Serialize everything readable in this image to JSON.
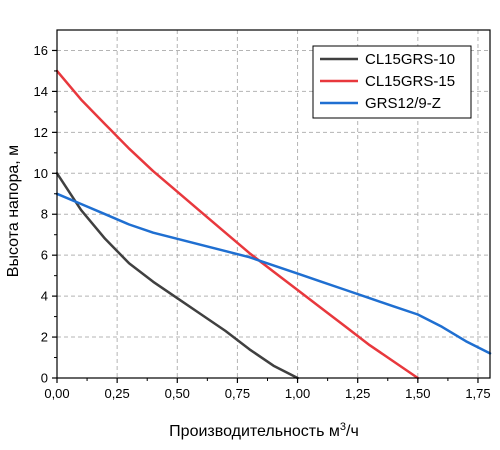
{
  "chart_data": {
    "type": "line",
    "title": "",
    "xlabel": "Производительность м³/ч",
    "xlabel_main": "Производительность м",
    "xlabel_sup": "3",
    "xlabel_tail": "/ч",
    "ylabel": "Высота напора, м",
    "xlim": [
      0,
      1.8
    ],
    "ylim": [
      0,
      17
    ],
    "xticks": [
      0,
      0.25,
      0.5,
      0.75,
      1.0,
      1.25,
      1.5,
      1.75
    ],
    "xtick_labels": [
      "0,00",
      "0,25",
      "0,50",
      "0,75",
      "1,00",
      "1,25",
      "1,50",
      "1,75"
    ],
    "yticks": [
      0,
      2,
      4,
      6,
      8,
      10,
      12,
      14,
      16
    ],
    "ytick_labels": [
      "0",
      "2",
      "4",
      "6",
      "8",
      "10",
      "12",
      "14",
      "16"
    ],
    "grid": true,
    "grid_style": "dashed",
    "legend_position": "top-right",
    "series": [
      {
        "name": "CL15GRS-10",
        "color": "#404040",
        "x": [
          0,
          0.1,
          0.2,
          0.3,
          0.4,
          0.5,
          0.6,
          0.7,
          0.8,
          0.9,
          1.0
        ],
        "y": [
          10.0,
          8.2,
          6.8,
          5.6,
          4.7,
          3.9,
          3.1,
          2.3,
          1.4,
          0.6,
          0.0
        ]
      },
      {
        "name": "CL15GRS-15",
        "color": "#e8383d",
        "x": [
          0,
          0.1,
          0.2,
          0.3,
          0.4,
          0.5,
          0.6,
          0.7,
          0.8,
          0.9,
          1.0,
          1.1,
          1.2,
          1.3,
          1.4,
          1.5
        ],
        "y": [
          15.0,
          13.6,
          12.4,
          11.2,
          10.1,
          9.1,
          8.1,
          7.1,
          6.1,
          5.2,
          4.3,
          3.4,
          2.5,
          1.6,
          0.8,
          0.0
        ]
      },
      {
        "name": "GRS12/9-Z",
        "color": "#1f6fd1",
        "x": [
          0,
          0.1,
          0.2,
          0.3,
          0.4,
          0.5,
          0.6,
          0.7,
          0.8,
          0.9,
          1.0,
          1.1,
          1.2,
          1.3,
          1.4,
          1.5,
          1.6,
          1.7,
          1.8
        ],
        "y": [
          9.0,
          8.5,
          8.0,
          7.5,
          7.1,
          6.8,
          6.5,
          6.2,
          5.9,
          5.5,
          5.1,
          4.7,
          4.3,
          3.9,
          3.5,
          3.1,
          2.5,
          1.8,
          1.2
        ]
      }
    ]
  }
}
